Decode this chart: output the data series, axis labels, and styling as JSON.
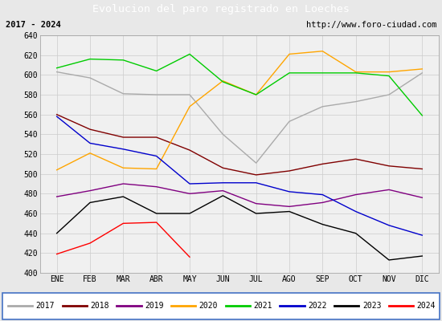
{
  "title": "Evolucion del paro registrado en Loeches",
  "subtitle_left": "2017 - 2024",
  "subtitle_right": "http://www.foro-ciudad.com",
  "months": [
    "ENE",
    "FEB",
    "MAR",
    "ABR",
    "MAY",
    "JUN",
    "JUL",
    "AGO",
    "SEP",
    "OCT",
    "NOV",
    "DIC"
  ],
  "ylim": [
    400,
    640
  ],
  "yticks": [
    400,
    420,
    440,
    460,
    480,
    500,
    520,
    540,
    560,
    580,
    600,
    620,
    640
  ],
  "series": {
    "2017": {
      "color": "#aaaaaa",
      "values": [
        603,
        597,
        581,
        580,
        580,
        540,
        511,
        553,
        568,
        573,
        580,
        602
      ]
    },
    "2018": {
      "color": "#800000",
      "values": [
        560,
        545,
        537,
        537,
        524,
        506,
        499,
        503,
        510,
        515,
        508,
        505
      ]
    },
    "2019": {
      "color": "#800080",
      "values": [
        477,
        483,
        490,
        487,
        480,
        483,
        470,
        467,
        471,
        479,
        484,
        476
      ]
    },
    "2020": {
      "color": "#ffa500",
      "values": [
        504,
        521,
        506,
        505,
        568,
        594,
        580,
        621,
        624,
        603,
        603,
        606
      ]
    },
    "2021": {
      "color": "#00cc00",
      "values": [
        607,
        616,
        615,
        604,
        621,
        593,
        580,
        602,
        602,
        602,
        599,
        559
      ]
    },
    "2022": {
      "color": "#0000cc",
      "values": [
        558,
        531,
        525,
        518,
        490,
        491,
        491,
        482,
        479,
        462,
        448,
        438
      ]
    },
    "2023": {
      "color": "#000000",
      "values": [
        440,
        471,
        477,
        460,
        460,
        478,
        460,
        462,
        449,
        440,
        413,
        417
      ]
    },
    "2024": {
      "color": "#ff0000",
      "values": [
        419,
        430,
        450,
        451,
        416,
        null,
        null,
        null,
        null,
        null,
        null,
        null
      ]
    }
  },
  "title_bg": "#4472c4",
  "title_color": "white",
  "title_fontsize": 9.5,
  "subtitle_fontsize": 7.5,
  "legend_fontsize": 7,
  "tick_fontsize": 7,
  "fig_bg": "#e8e8e8",
  "plot_bg": "#f0f0f0",
  "grid_color": "#cccccc",
  "subtitle_bg": "#d8d8d8",
  "legend_border_color": "#4472c4"
}
